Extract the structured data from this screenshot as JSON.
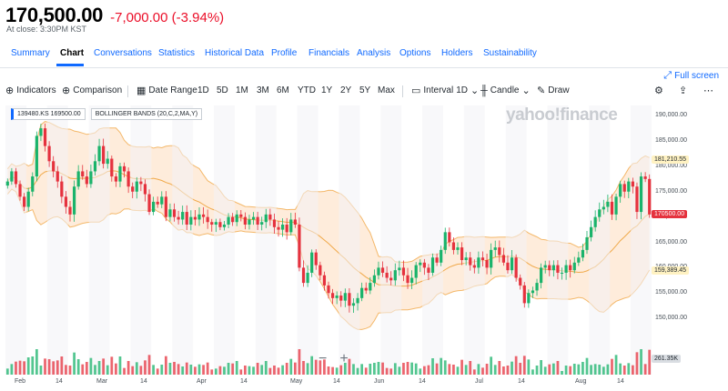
{
  "quote": {
    "price": "170,500.00",
    "change": "-7,000.00 (-3.94%)",
    "close_time": "At close: 3:30PM KST"
  },
  "tabs": [
    "Summary",
    "Chart",
    "Conversations",
    "Statistics",
    "Historical Data",
    "Profile",
    "Financials",
    "Analysis",
    "Options",
    "Holders",
    "Sustainability"
  ],
  "fullscreen_label": "Full screen",
  "toolbar": {
    "indicators": "Indicators",
    "comparison": "Comparison",
    "date_range": "Date Range",
    "ranges": [
      "1D",
      "5D",
      "1M",
      "3M",
      "6M",
      "YTD",
      "1Y",
      "2Y",
      "5Y",
      "Max"
    ],
    "interval_label": "Interval",
    "interval_value": "1D",
    "chart_type": "Candle",
    "draw": "Draw"
  },
  "legend": {
    "symbol": "139480.KS",
    "symbol_value": "169500.00",
    "indicator": "BOLLINGER BANDS (20,C,2,MA,Y)"
  },
  "watermark": "yahoo!finance",
  "colors": {
    "up": "#1ab36b",
    "down": "#e5323e",
    "band_fill": "#fde6cf",
    "band_line": "#f4b86a",
    "accent": "#0f69ff"
  },
  "chart_data": {
    "type": "candlestick",
    "y_range": [
      145000,
      192000
    ],
    "y_ticks": [
      "190,000.00",
      "185,000.00",
      "180,000.00",
      "175,000.00",
      "170,000.00",
      "165,000.00",
      "160,000.00",
      "155,000.00",
      "150,000.00"
    ],
    "y_badges": [
      {
        "label": "181,210.55",
        "value": 181210.55,
        "bg": "#fff2c2",
        "fg": "#232a31"
      },
      {
        "label": "170500.00",
        "value": 170500,
        "bg": "#e5323e",
        "fg": "#ffffff"
      },
      {
        "label": "159,389.45",
        "value": 159389.45,
        "bg": "#fff2c2",
        "fg": "#232a31"
      }
    ],
    "volume_badge": "261.35K",
    "x_ticks": [
      "Feb",
      "14",
      "Mar",
      "14",
      "Apr",
      "14",
      "May",
      "14",
      "Jun",
      "14",
      "Jul",
      "14",
      "Aug",
      "14"
    ],
    "close_series": [
      177000,
      179000,
      176500,
      174000,
      172000,
      175000,
      178000,
      186000,
      187500,
      184000,
      181000,
      179000,
      177000,
      174000,
      172000,
      170500,
      176000,
      179000,
      178000,
      176500,
      179000,
      181000,
      184000,
      180500,
      181500,
      178000,
      177000,
      180000,
      179000,
      176000,
      175000,
      177000,
      176500,
      174500,
      171000,
      173000,
      172500,
      174000,
      170000,
      171500,
      170000,
      169500,
      171000,
      168500,
      170000,
      169500,
      170500,
      170000,
      169000,
      168500,
      169000,
      168000,
      168500,
      170000,
      169000,
      170500,
      170000,
      168500,
      169500,
      170000,
      168500,
      169000,
      170500,
      169500,
      168000,
      167500,
      168500,
      167000,
      169500,
      168500,
      160000,
      157000,
      159000,
      163000,
      160500,
      158500,
      156500,
      155000,
      154000,
      154500,
      153500,
      155000,
      152500,
      153000,
      154000,
      156000,
      155500,
      157000,
      158500,
      160000,
      159000,
      158000,
      157500,
      159500,
      160000,
      158500,
      157000,
      158000,
      160500,
      161000,
      160000,
      159000,
      162000,
      161000,
      163500,
      167000,
      165000,
      163500,
      164000,
      161500,
      162000,
      160500,
      160000,
      162000,
      161500,
      160000,
      163500,
      164000,
      162500,
      161000,
      159500,
      162000,
      158000,
      156500,
      153000,
      155000,
      155500,
      157000,
      160000,
      160500,
      159500,
      160500,
      159000,
      159000,
      160500,
      159500,
      161000,
      162000,
      163500,
      166000,
      168000,
      170000,
      171500,
      172000,
      173000,
      170500,
      174000,
      176500,
      175000,
      177000,
      176000,
      171000,
      178000,
      177500,
      170500
    ]
  }
}
